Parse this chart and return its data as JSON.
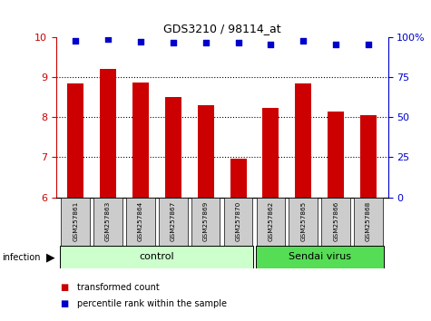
{
  "title": "GDS3210 / 98114_at",
  "samples": [
    "GSM257861",
    "GSM257863",
    "GSM257864",
    "GSM257867",
    "GSM257869",
    "GSM257870",
    "GSM257862",
    "GSM257865",
    "GSM257866",
    "GSM257868"
  ],
  "bar_values": [
    8.85,
    9.2,
    8.87,
    8.5,
    8.3,
    6.97,
    8.23,
    8.85,
    8.15,
    8.05
  ],
  "scatter_values": [
    97.5,
    98.5,
    97.0,
    96.5,
    96.5,
    96.5,
    95.5,
    97.8,
    95.5,
    95.5
  ],
  "bar_color": "#cc0000",
  "scatter_color": "#0000cc",
  "ylim_left": [
    6,
    10
  ],
  "ylim_right": [
    0,
    100
  ],
  "yticks_left": [
    6,
    7,
    8,
    9,
    10
  ],
  "yticks_right": [
    0,
    25,
    50,
    75,
    100
  ],
  "group_control_indices": [
    0,
    1,
    2,
    3,
    4,
    5
  ],
  "group_sendai_indices": [
    6,
    7,
    8,
    9
  ],
  "group_control_label": "control",
  "group_sendai_label": "Sendai virus",
  "infection_label": "infection",
  "legend_bar_label": "transformed count",
  "legend_scatter_label": "percentile rank within the sample",
  "control_bg": "#ccffcc",
  "sendai_bg": "#55dd55",
  "label_box_bg": "#cccccc",
  "right_axis_color": "#0000cc",
  "left_axis_color": "#cc0000"
}
